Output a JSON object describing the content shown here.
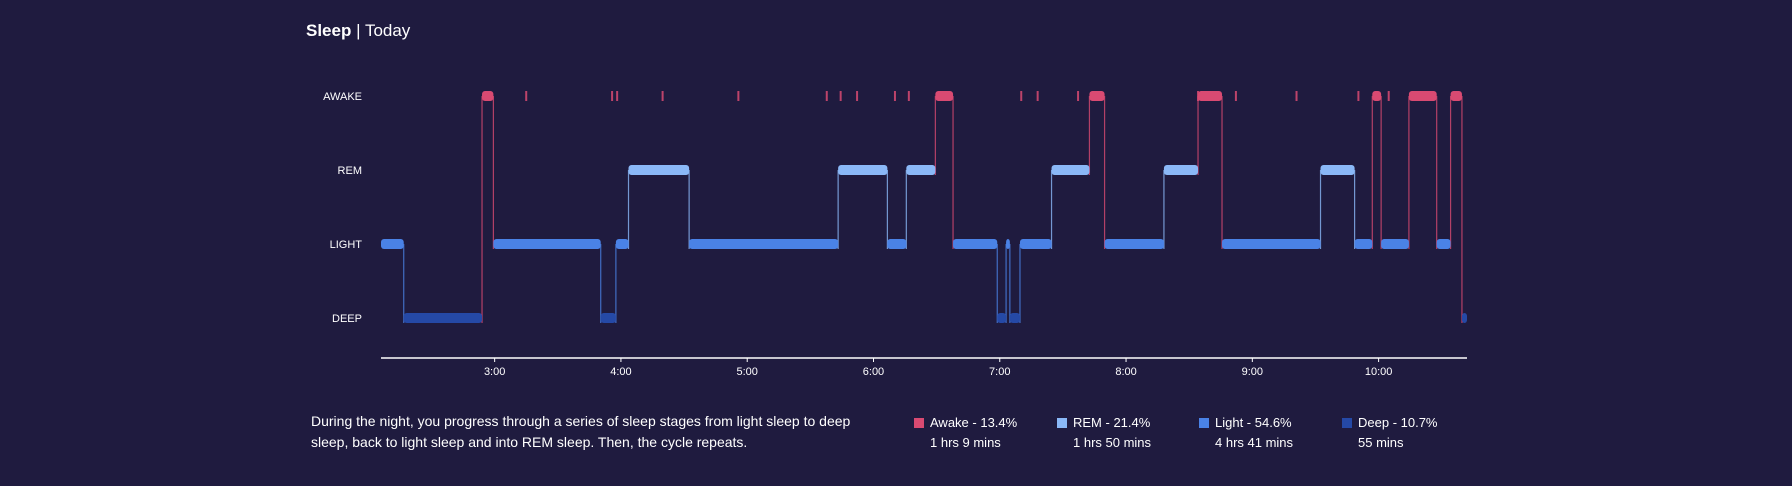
{
  "header": {
    "title": "Sleep",
    "separator": "|",
    "subtitle": "Today"
  },
  "description": "During the night, you progress through a series of sleep stages from light sleep to deep sleep, back to light sleep and into REM sleep. Then, the cycle repeats.",
  "colors": {
    "background": "#1f1b3f",
    "awake": "#d94a72",
    "rem": "#8ab8f7",
    "light": "#4a82e6",
    "deep": "#2549a6"
  },
  "legend": [
    {
      "stage": "awake",
      "label": "Awake - 13.4%",
      "duration": "1 hrs 9 mins"
    },
    {
      "stage": "rem",
      "label": "REM - 21.4%",
      "duration": "1 hrs 50 mins"
    },
    {
      "stage": "light",
      "label": "Light - 54.6%",
      "duration": "4 hrs 41 mins"
    },
    {
      "stage": "deep",
      "label": "Deep - 10.7%",
      "duration": "55 mins"
    }
  ],
  "chart_data": {
    "type": "line",
    "title": "Sleep",
    "subtitle": "Today",
    "y_categories": [
      "AWAKE",
      "REM",
      "LIGHT",
      "DEEP"
    ],
    "x_tick_labels": [
      "3:00",
      "4:00",
      "5:00",
      "6:00",
      "7:00",
      "8:00",
      "9:00",
      "10:00"
    ],
    "x_range_hours": [
      2.1,
      10.7
    ],
    "grid": false,
    "legend_position": "bottom-right",
    "segments": [
      {
        "stage": "LIGHT",
        "start": 2.1,
        "end": 2.28
      },
      {
        "stage": "DEEP",
        "start": 2.28,
        "end": 2.9
      },
      {
        "stage": "AWAKE",
        "start": 2.9,
        "end": 2.99
      },
      {
        "stage": "LIGHT",
        "start": 2.99,
        "end": 3.84
      },
      {
        "stage": "DEEP",
        "start": 3.84,
        "end": 3.96
      },
      {
        "stage": "LIGHT",
        "start": 3.96,
        "end": 4.06
      },
      {
        "stage": "REM",
        "start": 4.06,
        "end": 4.54
      },
      {
        "stage": "LIGHT",
        "start": 4.54,
        "end": 5.72
      },
      {
        "stage": "REM",
        "start": 5.72,
        "end": 6.11
      },
      {
        "stage": "LIGHT",
        "start": 6.11,
        "end": 6.26
      },
      {
        "stage": "REM",
        "start": 6.26,
        "end": 6.49
      },
      {
        "stage": "AWAKE",
        "start": 6.49,
        "end": 6.63
      },
      {
        "stage": "LIGHT",
        "start": 6.63,
        "end": 6.98
      },
      {
        "stage": "DEEP",
        "start": 6.98,
        "end": 7.05
      },
      {
        "stage": "LIGHT",
        "start": 7.05,
        "end": 7.08
      },
      {
        "stage": "DEEP",
        "start": 7.08,
        "end": 7.16
      },
      {
        "stage": "LIGHT",
        "start": 7.16,
        "end": 7.41
      },
      {
        "stage": "REM",
        "start": 7.41,
        "end": 7.71
      },
      {
        "stage": "AWAKE",
        "start": 7.71,
        "end": 7.83
      },
      {
        "stage": "LIGHT",
        "start": 7.83,
        "end": 8.3
      },
      {
        "stage": "REM",
        "start": 8.3,
        "end": 8.57
      },
      {
        "stage": "AWAKE",
        "start": 8.57,
        "end": 8.76
      },
      {
        "stage": "LIGHT",
        "start": 8.76,
        "end": 9.54
      },
      {
        "stage": "REM",
        "start": 9.54,
        "end": 9.81
      },
      {
        "stage": "LIGHT",
        "start": 9.81,
        "end": 9.95
      },
      {
        "stage": "AWAKE",
        "start": 9.95,
        "end": 10.02
      },
      {
        "stage": "LIGHT",
        "start": 10.02,
        "end": 10.24
      },
      {
        "stage": "AWAKE",
        "start": 10.24,
        "end": 10.46
      },
      {
        "stage": "LIGHT",
        "start": 10.46,
        "end": 10.57
      },
      {
        "stage": "AWAKE",
        "start": 10.57,
        "end": 10.66
      },
      {
        "stage": "DEEP",
        "start": 10.66,
        "end": 10.7
      }
    ],
    "brief_awakenings": [
      3.25,
      3.93,
      3.97,
      4.33,
      4.93,
      5.63,
      5.74,
      5.87,
      6.17,
      6.28,
      7.17,
      7.3,
      7.62,
      8.57,
      8.87,
      9.35,
      9.84,
      10.08
    ]
  }
}
